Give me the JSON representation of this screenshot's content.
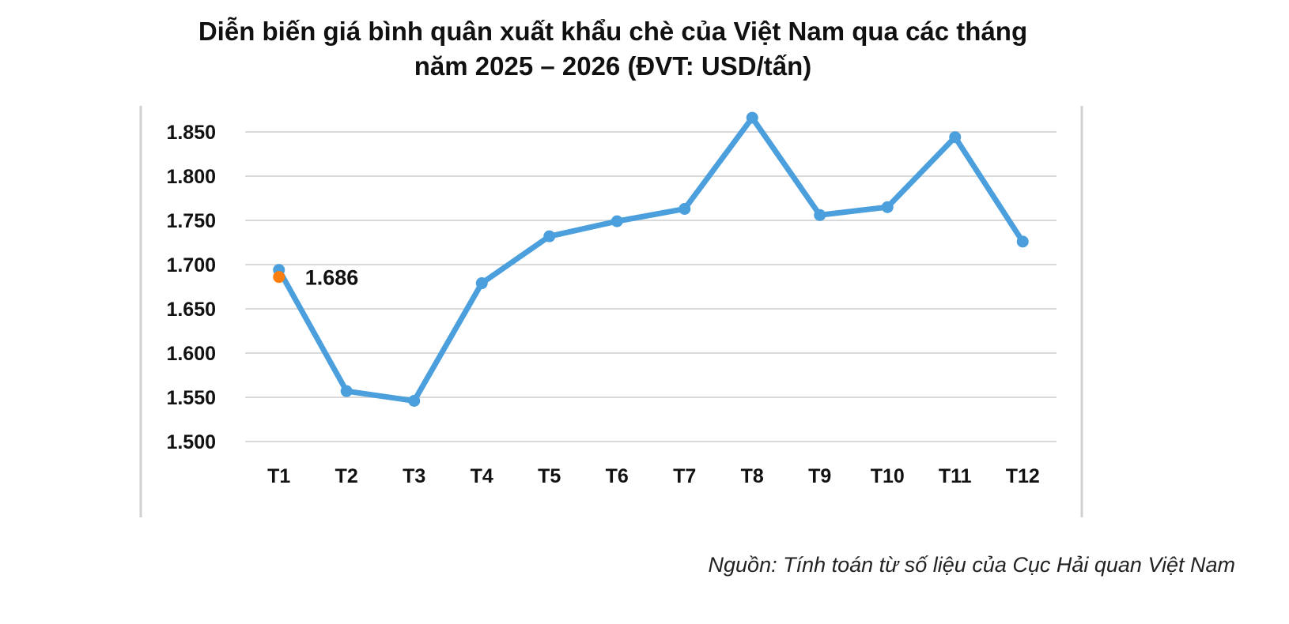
{
  "title": {
    "line1": "Diễn biến giá bình quân xuất khẩu chè của Việt Nam qua các tháng",
    "line2": "năm 2025 – 2026 (ĐVT: USD/tấn)"
  },
  "source": "Nguồn: Tính toán từ số liệu của Cục Hải quan Việt Nam",
  "colors": {
    "series_2025": "#4a9fdc",
    "series_2026": "#ff7f0e",
    "grid": "#d9d9d9",
    "frame": "#d0d0d0"
  },
  "chart_data": {
    "type": "line",
    "categories": [
      "T1",
      "T2",
      "T3",
      "T4",
      "T5",
      "T6",
      "T7",
      "T8",
      "T9",
      "T10",
      "T11",
      "T12"
    ],
    "y_ticks": [
      "1.850",
      "1.800",
      "1.750",
      "1.700",
      "1.650",
      "1.600",
      "1.550",
      "1.500"
    ],
    "ylim": [
      1500,
      1850
    ],
    "grid": true,
    "series": [
      {
        "key": "2025",
        "values": [
          1694,
          1557,
          1546,
          1679,
          1732,
          1749,
          1763,
          1866,
          1756,
          1765,
          1844,
          1726
        ]
      },
      {
        "key": "2026",
        "values": [
          1686,
          null,
          null,
          null,
          null,
          null,
          null,
          null,
          null,
          null,
          null,
          null
        ],
        "data_label": "1.686"
      }
    ]
  }
}
